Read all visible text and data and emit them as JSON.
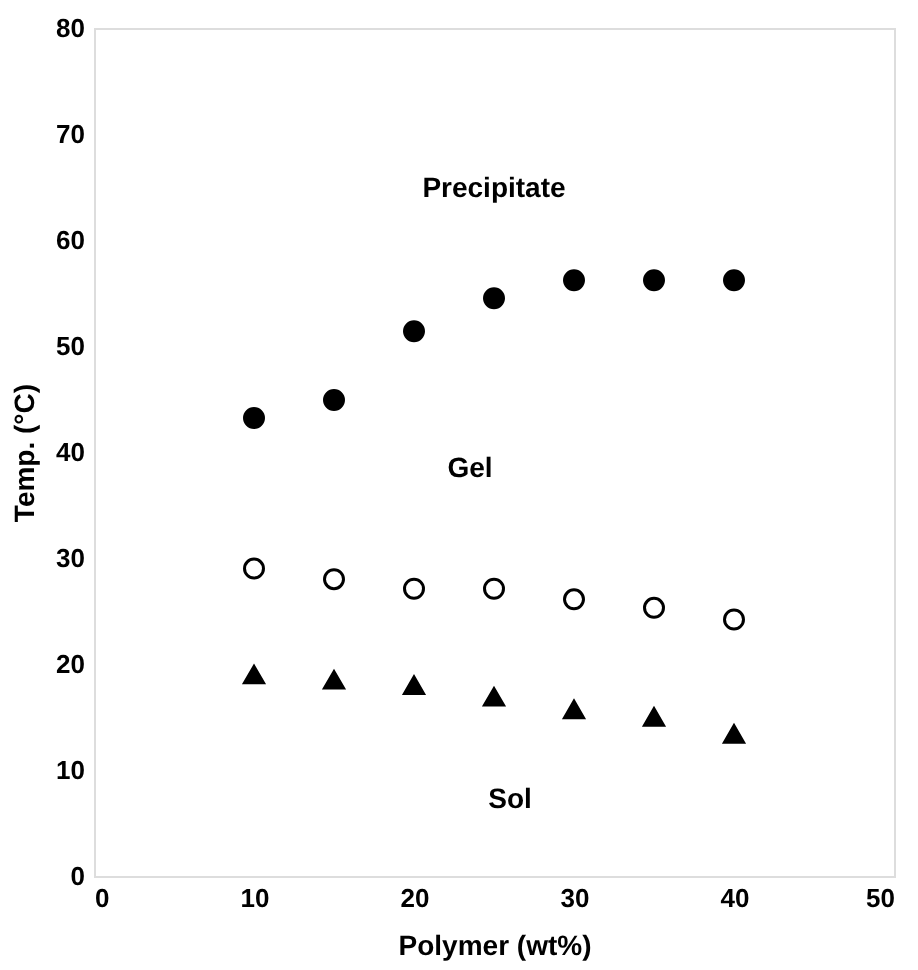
{
  "chart_data": {
    "type": "scatter",
    "xlabel": "Polymer (wt%)",
    "ylabel": "Temp. (°C)",
    "x": [
      10,
      15,
      20,
      25,
      30,
      35,
      40
    ],
    "series": [
      {
        "color": "#000000",
        "marker": "circle",
        "values": [
          43.2,
          44.9,
          51.4,
          54.5,
          56.2,
          56.2,
          56.2
        ]
      },
      {
        "color": "#ffffff",
        "marker": "circle",
        "values": [
          29.0,
          28.0,
          27.1,
          27.1,
          26.1,
          25.3,
          24.2
        ]
      },
      {
        "color": "#000000",
        "marker": "triangle",
        "values": [
          19.0,
          18.5,
          18.0,
          16.9,
          15.7,
          15.0,
          13.4
        ]
      }
    ],
    "xlim": [
      0,
      50
    ],
    "xticks": [
      0,
      10,
      20,
      30,
      40,
      50
    ],
    "ylim": [
      0,
      80
    ],
    "yticks": [
      0,
      10,
      20,
      30,
      40,
      50,
      60,
      70,
      80
    ],
    "grid": false,
    "annotations": [
      "Precipitate",
      "Gel",
      "Sol"
    ]
  }
}
